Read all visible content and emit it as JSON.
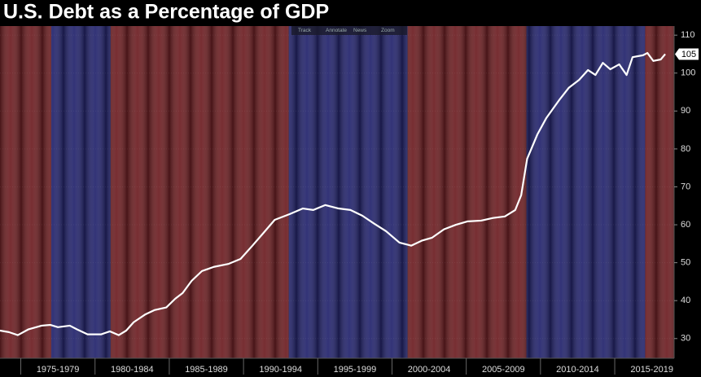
{
  "chart_data": {
    "type": "line",
    "title": "U.S. Debt as a Percentage of GDP",
    "toolbar": [
      "Track",
      "Annotate",
      "News",
      "Zoom"
    ],
    "xlim": [
      1973.6,
      2019.0
    ],
    "ylim": [
      24.8,
      112.4
    ],
    "yticks": [
      30,
      40,
      50,
      60,
      70,
      80,
      90,
      100,
      110
    ],
    "xticks": [
      {
        "value": 1977.5,
        "label": "1975-1979"
      },
      {
        "value": 1982.5,
        "label": "1980-1984"
      },
      {
        "value": 1987.5,
        "label": "1985-1989"
      },
      {
        "value": 1992.5,
        "label": "1990-1994"
      },
      {
        "value": 1997.5,
        "label": "1995-1999"
      },
      {
        "value": 2002.5,
        "label": "2000-2004"
      },
      {
        "value": 2007.5,
        "label": "2005-2009"
      },
      {
        "value": 2012.5,
        "label": "2010-2014"
      },
      {
        "value": 2017.5,
        "label": "2015-2019"
      }
    ],
    "bands": [
      {
        "start": 1969.05,
        "end": 1977.05,
        "color": "#6e2024"
      },
      {
        "start": 1977.05,
        "end": 1981.05,
        "color": "#25266e"
      },
      {
        "start": 1981.05,
        "end": 1993.05,
        "color": "#6e2024"
      },
      {
        "start": 1993.05,
        "end": 2001.05,
        "color": "#25266e"
      },
      {
        "start": 2001.05,
        "end": 2009.05,
        "color": "#6e2024"
      },
      {
        "start": 2009.05,
        "end": 2017.05,
        "color": "#25266e"
      },
      {
        "start": 2017.05,
        "end": 2021.05,
        "color": "#6e2024"
      }
    ],
    "color": "#ffffff",
    "x": [
      1973.6,
      1974.2,
      1974.8,
      1975.5,
      1976.4,
      1977.0,
      1977.5,
      1978.3,
      1978.8,
      1979.5,
      1980.4,
      1981.0,
      1981.6,
      1982.1,
      1982.6,
      1983.4,
      1984.0,
      1984.8,
      1985.4,
      1985.9,
      1986.5,
      1987.2,
      1988.0,
      1989.0,
      1989.8,
      1990.6,
      1991.4,
      1992.1,
      1993.1,
      1994.0,
      1994.7,
      1995.5,
      1996.4,
      1997.2,
      1998.0,
      1998.8,
      1999.6,
      2000.5,
      2001.3,
      2002.0,
      2002.7,
      2003.5,
      2004.3,
      2005.1,
      2006.0,
      2006.8,
      2007.6,
      2008.3,
      2008.7,
      2009.1,
      2009.8,
      2010.4,
      2011.3,
      2011.9,
      2012.6,
      2013.2,
      2013.7,
      2014.2,
      2014.7,
      2015.3,
      2015.8,
      2016.2,
      2016.9,
      2017.2,
      2017.6,
      2018.1,
      2018.4
    ],
    "values": [
      32.1,
      31.7,
      30.9,
      32.4,
      33.4,
      33.6,
      33.0,
      33.4,
      32.4,
      31.1,
      31.1,
      31.9,
      30.9,
      32.1,
      34.3,
      36.4,
      37.5,
      38.2,
      40.5,
      42.0,
      45.2,
      47.8,
      48.9,
      49.7,
      51.0,
      54.5,
      58.1,
      61.3,
      62.8,
      64.3,
      63.9,
      65.2,
      64.3,
      63.9,
      62.4,
      60.3,
      58.3,
      55.3,
      54.5,
      55.8,
      56.6,
      58.8,
      60.0,
      60.9,
      61.1,
      61.8,
      62.2,
      63.9,
      67.8,
      77.4,
      83.9,
      88.2,
      93.1,
      96.1,
      98.2,
      100.8,
      99.5,
      102.7,
      101.0,
      102.3,
      99.5,
      104.2,
      104.7,
      105.3,
      103.2,
      103.6,
      105
    ]
  }
}
